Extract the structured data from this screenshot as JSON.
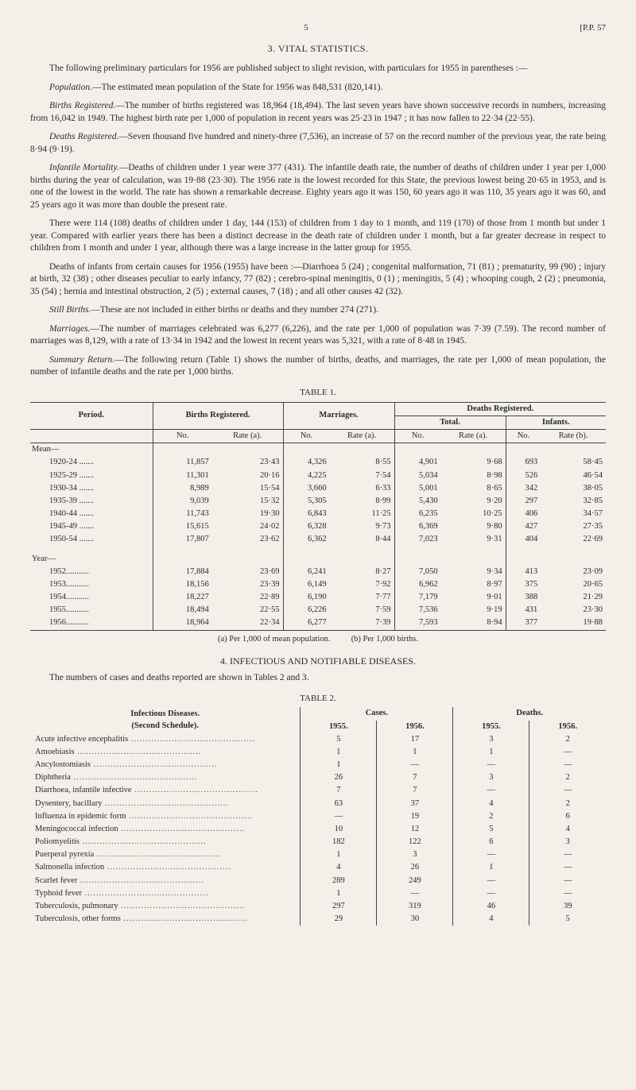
{
  "header": {
    "page": "5",
    "ref": "[P.P. 57"
  },
  "sec3": {
    "title": "3. VITAL STATISTICS.",
    "p1": "The following preliminary particulars for 1956 are published subject to slight revision, with particulars for 1955 in parentheses :—",
    "pop_i": "Population.",
    "pop": "—The estimated mean population of the State for 1956 was 848,531 (820,141).",
    "birthsR_i": "Births Registered.",
    "birthsR": "—The number of births registered was 18,964 (18,494). The last seven years have shown successive records in numbers, increasing from 16,042 in 1949. The highest birth rate per 1,000 of population in recent years was 25·23 in 1947 ; it has now fallen to 22·34 (22·55).",
    "deathsR_i": "Deaths Registered.",
    "deathsR": "—Seven thousand five hundred and ninety-three (7,536), an increase of 57 on the record number of the previous year, the rate being 8·94 (9·19).",
    "inf_i": "Infantile Mortality.",
    "inf": "—Deaths of children under 1 year were 377 (431). The infantile death rate, the number of deaths of children under 1 year per 1,000 births during the year of calculation, was 19·88 (23·30). The 1956 rate is the lowest recorded for this State, the previous lowest being 20·65 in 1953, and is one of the lowest in the world. The rate has shown a remarkable decrease. Eighty years ago it was 150, 60 years ago it was 110, 35 years ago it was 60, and 25 years ago it was more than double the present rate.",
    "p6": "There were 114 (108) deaths of children under 1 day, 144 (153) of children from 1 day to 1 month, and 119 (170) of those from 1 month but under 1 year. Compared with earlier years there has been a distinct decrease in the death rate of children under 1 month, but a far greater decrease in respect to children from 1 month and under 1 year, although there was a large increase in the latter group for 1955.",
    "p7": "Deaths of infants from certain causes for 1956 (1955) have been :—Diarrhoea 5 (24) ; congenital malformation, 71 (81) ; prematurity, 99 (90) ; injury at birth, 32 (38) ; other diseases peculiar to early infancy, 77 (82) ; cerebro-spinal meningitis, 0 (1) ; meningitis, 5 (4) ; whooping cough, 2 (2) ; pneumonia, 35 (54) ; hernia and intestinal obstruction, 2 (5) ; external causes, 7 (18) ; and all other causes 42 (32).",
    "still_i": "Still Births.",
    "still": "—These are not included in either births or deaths and they number 274 (271).",
    "marr_i": "Marriages.",
    "marr": "—The number of marriages celebrated was 6,277 (6,226), and the rate per 1,000 of population was 7·39 (7.59). The record number of marriages was 8,129, with a rate of 13·34 in 1942 and the lowest in recent years was 5,321, with a rate of 8·48 in 1945.",
    "sum_i": "Summary Return.",
    "sum": "—The following return (Table 1) shows the number of births, deaths, and marriages, the rate per 1,000 of mean population, the number of infantile deaths and the rate per 1,000 births."
  },
  "table1": {
    "title": "TABLE 1.",
    "h": {
      "period": "Period.",
      "births": "Births Registered.",
      "marr": "Marriages.",
      "deaths": "Deaths Registered.",
      "total": "Total.",
      "infants": "Infants.",
      "no": "No.",
      "ratea": "Rate (a).",
      "rateb": "Rate (b)."
    },
    "groups": {
      "mean": "Mean—",
      "year": "Year—"
    },
    "mean_rows": [
      {
        "label": "1920-24 .......",
        "bn": "11,857",
        "br": "23·43",
        "mn": "4,326",
        "mr": "8·55",
        "tn": "4,901",
        "tr": "9·68",
        "in": "693",
        "ir": "58·45"
      },
      {
        "label": "1925-29 .......",
        "bn": "11,301",
        "br": "20·16",
        "mn": "4,225",
        "mr": "7·54",
        "tn": "5,034",
        "tr": "8·98",
        "in": "526",
        "ir": "46·54"
      },
      {
        "label": "1930-34 .......",
        "bn": "8,989",
        "br": "15·54",
        "mn": "3,660",
        "mr": "6·33",
        "tn": "5,001",
        "tr": "8·65",
        "in": "342",
        "ir": "38·05"
      },
      {
        "label": "1935-39 .......",
        "bn": "9,039",
        "br": "15·32",
        "mn": "5,305",
        "mr": "8·99",
        "tn": "5,430",
        "tr": "9·20",
        "in": "297",
        "ir": "32·85"
      },
      {
        "label": "1940-44 .......",
        "bn": "11,743",
        "br": "19·30",
        "mn": "6,843",
        "mr": "11·25",
        "tn": "6,235",
        "tr": "10·25",
        "in": "406",
        "ir": "34·57"
      },
      {
        "label": "1945-49 .......",
        "bn": "15,615",
        "br": "24·02",
        "mn": "6,328",
        "mr": "9·73",
        "tn": "6,369",
        "tr": "9·80",
        "in": "427",
        "ir": "27·35"
      },
      {
        "label": "1950-54 .......",
        "bn": "17,807",
        "br": "23·62",
        "mn": "6,362",
        "mr": "8·44",
        "tn": "7,023",
        "tr": "9·31",
        "in": "404",
        "ir": "22·69"
      }
    ],
    "year_rows": [
      {
        "label": "1952...........",
        "bn": "17,884",
        "br": "23·69",
        "mn": "6,241",
        "mr": "8·27",
        "tn": "7,050",
        "tr": "9·34",
        "in": "413",
        "ir": "23·09"
      },
      {
        "label": "1953...........",
        "bn": "18,156",
        "br": "23·39",
        "mn": "6,149",
        "mr": "7·92",
        "tn": "6,962",
        "tr": "8·97",
        "in": "375",
        "ir": "20·65"
      },
      {
        "label": "1954...........",
        "bn": "18,227",
        "br": "22·89",
        "mn": "6,190",
        "mr": "7·77",
        "tn": "7,179",
        "tr": "9·01",
        "in": "388",
        "ir": "21·29"
      },
      {
        "label": "1955...........",
        "bn": "18,494",
        "br": "22·55",
        "mn": "6,226",
        "mr": "7·59",
        "tn": "7,536",
        "tr": "9·19",
        "in": "431",
        "ir": "23·30"
      },
      {
        "label": "1956...........",
        "bn": "18,964",
        "br": "22·34",
        "mn": "6,277",
        "mr": "7·39",
        "tn": "7,593",
        "tr": "8·94",
        "in": "377",
        "ir": "19·88"
      }
    ],
    "foot_a": "(a) Per 1,000 of mean population.",
    "foot_b": "(b) Per 1,000 births."
  },
  "sec4": {
    "title": "4. INFECTIOUS AND NOTIFIABLE DISEASES.",
    "p1": "The numbers of cases and deaths reported are shown in Tables 2 and 3."
  },
  "table2": {
    "title": "TABLE 2.",
    "h": {
      "group": "Infectious Diseases.\n(Second Schedule).",
      "cases": "Cases.",
      "deaths": "Deaths.",
      "y55": "1955.",
      "y56": "1956."
    },
    "rows": [
      {
        "d": "Acute infective encephalitis",
        "c55": "5",
        "c56": "17",
        "d55": "3",
        "d56": "2"
      },
      {
        "d": "Amoebiasis",
        "c55": "1",
        "c56": "1",
        "d55": "1",
        "d56": "—"
      },
      {
        "d": "Ancylostomiasis",
        "c55": "1",
        "c56": "—",
        "d55": "—",
        "d56": "—"
      },
      {
        "d": "Diphtheria",
        "c55": "26",
        "c56": "7",
        "d55": "3",
        "d56": "2"
      },
      {
        "d": "Diarrhoea, infantile infective",
        "c55": "7",
        "c56": "7",
        "d55": "—",
        "d56": "—"
      },
      {
        "d": "Dysentery, bacillary",
        "c55": "63",
        "c56": "37",
        "d55": "4",
        "d56": "2"
      },
      {
        "d": "Influenza in epidemic form",
        "c55": "—",
        "c56": "19",
        "d55": "2",
        "d56": "6"
      },
      {
        "d": "Meningococcal infection",
        "c55": "10",
        "c56": "12",
        "d55": "5",
        "d56": "4"
      },
      {
        "d": "Poliomyelitis",
        "c55": "182",
        "c56": "122",
        "d55": "6",
        "d56": "3"
      },
      {
        "d": "Puerperal pyrexia",
        "c55": "1",
        "c56": "3",
        "d55": "—",
        "d56": "—"
      },
      {
        "d": "Salmonella infection",
        "c55": "4",
        "c56": "26",
        "d55": "1",
        "d56": "—"
      },
      {
        "d": "Scarlet fever",
        "c55": "289",
        "c56": "249",
        "d55": "—",
        "d56": "—"
      },
      {
        "d": "Typhoid fever",
        "c55": "1",
        "c56": "—",
        "d55": "—",
        "d56": "—"
      },
      {
        "d": "Tuberculosis, pulmonary",
        "c55": "297",
        "c56": "319",
        "d55": "46",
        "d56": "39"
      },
      {
        "d": "Tuberculosis, other forms",
        "c55": "29",
        "c56": "30",
        "d55": "4",
        "d56": "5"
      }
    ]
  }
}
